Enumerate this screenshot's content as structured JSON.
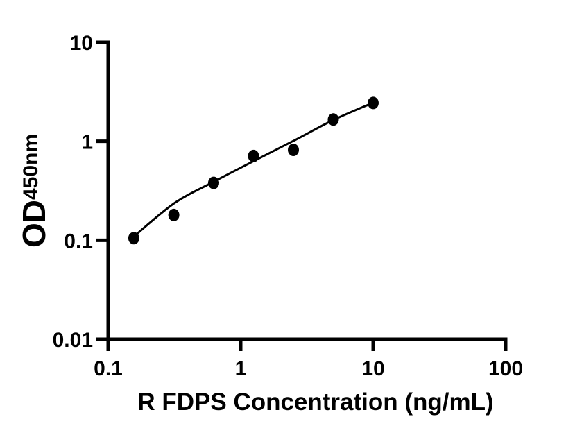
{
  "chart_data": {
    "type": "scatter",
    "title": "",
    "xlabel": "R FDPS Concentration (ng/mL)",
    "ylabel": "OD",
    "ylabel_sub": "450nm",
    "x_scale": "log",
    "y_scale": "log",
    "xlim": [
      0.1,
      100
    ],
    "ylim": [
      0.01,
      10
    ],
    "x_ticks": [
      0.1,
      1,
      10,
      100
    ],
    "x_tick_labels": [
      "0.1",
      "1",
      "10",
      "100"
    ],
    "y_ticks": [
      10,
      1,
      0.1,
      0.01
    ],
    "y_tick_labels": [
      "10",
      "1",
      "0.1",
      "0.01"
    ],
    "grid": false,
    "legend": "none",
    "series": [
      {
        "name": "standard-points",
        "type": "scatter",
        "x": [
          0.156,
          0.313,
          0.625,
          1.25,
          2.5,
          5,
          10
        ],
        "y": [
          0.105,
          0.18,
          0.38,
          0.71,
          0.82,
          1.66,
          2.44
        ]
      },
      {
        "name": "fit-curve",
        "type": "line",
        "x": [
          0.156,
          0.313,
          0.625,
          1.25,
          2.5,
          5,
          10
        ],
        "y": [
          0.109,
          0.235,
          0.39,
          0.63,
          1.01,
          1.64,
          2.455
        ]
      }
    ],
    "colors": {
      "points": "#000000",
      "line": "#000000",
      "axis": "#000000",
      "text": "#000000",
      "background": "#ffffff"
    }
  }
}
